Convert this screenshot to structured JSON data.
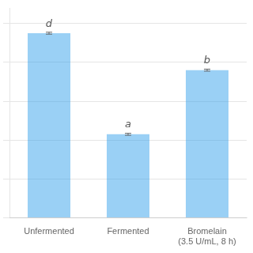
{
  "chart_data": {
    "type": "bar",
    "categories": [
      "Unfermented",
      "Fermented",
      "Bromelain\n(3.5 U/mL, 8 h)"
    ],
    "values": [
      95,
      43,
      76
    ],
    "errors": [
      0.5,
      0.5,
      0.5
    ],
    "annotations": [
      "d",
      "a",
      "b"
    ],
    "ylim": [
      0,
      108
    ],
    "yticks": [
      0,
      20,
      40,
      60,
      80,
      100
    ],
    "grid": true,
    "tick_labels": "x"
  }
}
